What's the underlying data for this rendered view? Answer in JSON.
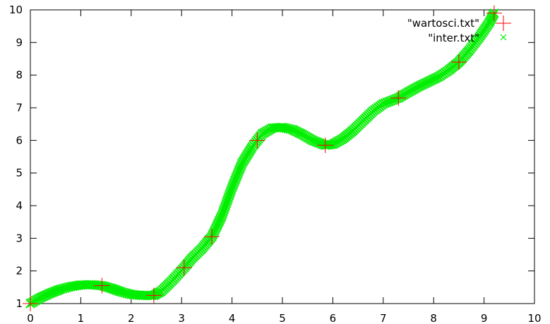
{
  "chart_data": {
    "type": "scatter",
    "title": "",
    "xlabel": "",
    "ylabel": "",
    "xlim": [
      0,
      10
    ],
    "ylim": [
      1,
      10
    ],
    "grid": false,
    "legend_position": "top-right",
    "x_ticks": [
      "0",
      "1",
      "2",
      "3",
      "4",
      "5",
      "6",
      "7",
      "8",
      "9",
      "10"
    ],
    "y_ticks": [
      "1",
      "2",
      "3",
      "4",
      "5",
      "6",
      "7",
      "8",
      "9",
      "10"
    ],
    "series": [
      {
        "name": "\"wartosci.txt\"",
        "marker": "plus",
        "color": "#ff0000",
        "x": [
          0.0,
          1.42,
          2.45,
          3.05,
          3.6,
          4.5,
          5.85,
          7.3,
          8.5,
          9.2
        ],
        "y": [
          1.0,
          1.55,
          1.25,
          2.1,
          3.05,
          6.0,
          5.85,
          7.3,
          8.4,
          9.9
        ]
      },
      {
        "name": "\"inter.txt\"",
        "marker": "cross",
        "color": "#00ee00",
        "x": [
          0.0,
          0.2,
          0.4,
          0.6,
          0.8,
          1.0,
          1.2,
          1.42,
          1.6,
          1.8,
          2.0,
          2.2,
          2.45,
          2.6,
          2.8,
          3.05,
          3.2,
          3.4,
          3.6,
          3.8,
          4.0,
          4.2,
          4.4,
          4.5,
          4.6,
          4.8,
          5.0,
          5.2,
          5.4,
          5.6,
          5.85,
          6.0,
          6.2,
          6.4,
          6.6,
          6.8,
          7.0,
          7.3,
          7.5,
          7.7,
          7.9,
          8.1,
          8.3,
          8.5,
          8.7,
          8.9,
          9.1,
          9.2
        ],
        "y": [
          1.0,
          1.18,
          1.32,
          1.44,
          1.52,
          1.57,
          1.58,
          1.55,
          1.47,
          1.36,
          1.28,
          1.25,
          1.25,
          1.38,
          1.68,
          2.1,
          2.38,
          2.68,
          3.05,
          3.7,
          4.55,
          5.3,
          5.8,
          6.0,
          6.2,
          6.38,
          6.4,
          6.33,
          6.18,
          6.0,
          5.85,
          5.88,
          6.05,
          6.3,
          6.6,
          6.9,
          7.12,
          7.3,
          7.48,
          7.65,
          7.8,
          7.95,
          8.15,
          8.4,
          8.75,
          9.15,
          9.6,
          9.9
        ]
      }
    ]
  }
}
